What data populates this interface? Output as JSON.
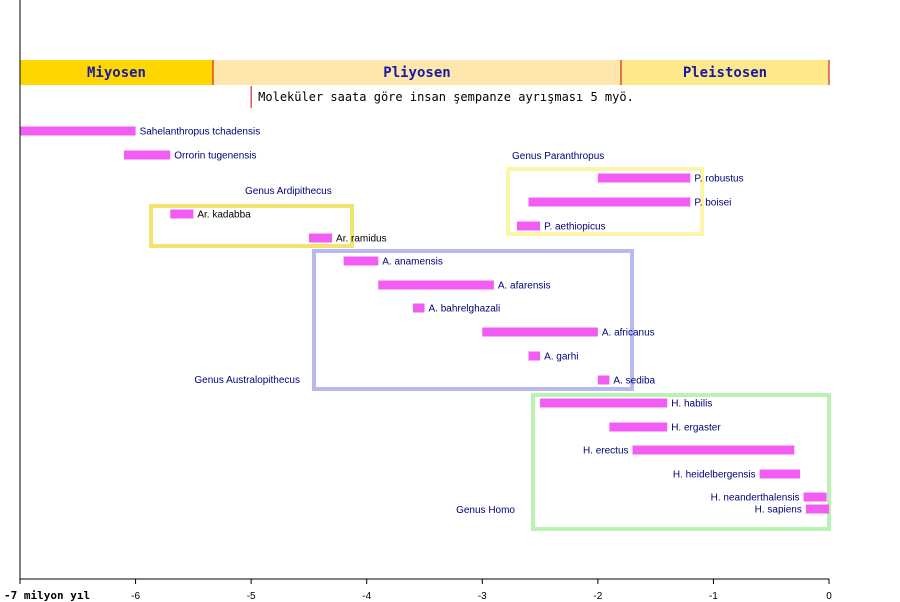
{
  "chart_data": {
    "type": "range-bar",
    "xlim": [
      -7,
      0
    ],
    "x_unit_label": "-7 milyon yıl",
    "x_ticks": [
      {
        "value": -6,
        "label": "-6"
      },
      {
        "value": -5,
        "label": "-5"
      },
      {
        "value": -4,
        "label": "-4"
      },
      {
        "value": -3,
        "label": "-3"
      },
      {
        "value": -2,
        "label": "-2"
      },
      {
        "value": -1,
        "label": "-1"
      },
      {
        "value": 0,
        "label": "0"
      }
    ],
    "epochs": [
      {
        "name": "Miyosen",
        "start": -7,
        "end": -5.33,
        "color": "#ffd700"
      },
      {
        "name": "Pliyosen",
        "start": -5.33,
        "end": -1.8,
        "color": "#fde7ad"
      },
      {
        "name": "Pleistosen",
        "start": -1.8,
        "end": 0,
        "color": "#fde98a"
      }
    ],
    "note": {
      "text": "Moleküler saata göre insan şempanze ayrışması 5 myö.",
      "marker_x": -5
    },
    "species": [
      {
        "name": "Sahelanthropus tchadensis",
        "start": -7.0,
        "end": -6.0,
        "label_color": "#00007a"
      },
      {
        "name": "Orrorin tugenensis",
        "start": -6.1,
        "end": -5.7,
        "label_color": "#00007a"
      },
      {
        "name": "P. robustus",
        "start": -2.0,
        "end": -1.2,
        "label_color": "#00007a"
      },
      {
        "name": "P. boisei",
        "start": -2.6,
        "end": -1.2,
        "label_color": "#00007a"
      },
      {
        "name": "Ar. kadabba",
        "start": -5.7,
        "end": -5.5,
        "label_color": "#000000"
      },
      {
        "name": "P. aethiopicus",
        "start": -2.7,
        "end": -2.5,
        "label_color": "#00007a"
      },
      {
        "name": "Ar. ramidus",
        "start": -4.5,
        "end": -4.3,
        "label_color": "#000000"
      },
      {
        "name": "A. anamensis",
        "start": -4.2,
        "end": -3.9,
        "label_color": "#00007a"
      },
      {
        "name": "A. afarensis",
        "start": -3.9,
        "end": -2.9,
        "label_color": "#00007a"
      },
      {
        "name": "A. bahrelghazali",
        "start": -3.6,
        "end": -3.5,
        "label_color": "#00007a"
      },
      {
        "name": "A. africanus",
        "start": -3.0,
        "end": -2.0,
        "label_color": "#00007a"
      },
      {
        "name": "A. garhi",
        "start": -2.6,
        "end": -2.5,
        "label_color": "#00007a"
      },
      {
        "name": "A. sediba",
        "start": -2.0,
        "end": -1.9,
        "label_color": "#00007a"
      },
      {
        "name": "H. habilis",
        "start": -2.5,
        "end": -1.4,
        "label_color": "#00007a"
      },
      {
        "name": "H. ergaster",
        "start": -1.9,
        "end": -1.4,
        "label_color": "#00007a"
      },
      {
        "name": "H. erectus",
        "start": -1.7,
        "end": -0.3,
        "label_color": "#00007a"
      },
      {
        "name": "H. heidelbergensis",
        "start": -0.6,
        "end": -0.25,
        "label_color": "#00007a"
      },
      {
        "name": "H. neanderthalensis",
        "start": -0.22,
        "end": -0.02,
        "label_color": "#00007a"
      },
      {
        "name": "H. sapiens",
        "start": -0.2,
        "end": 0.0,
        "label_color": "#00007a"
      }
    ],
    "genus_groups": [
      {
        "name": "Genus Paranthropus",
        "color": "#fdf6a8"
      },
      {
        "name": "Genus Ardipithecus",
        "color": "#f2e26e"
      },
      {
        "name": "Genus Australopithecus",
        "color": "#b9b9f2"
      },
      {
        "name": "Genus Homo",
        "color": "#b9f2b3"
      }
    ],
    "bar_color": "#f25cf2"
  }
}
